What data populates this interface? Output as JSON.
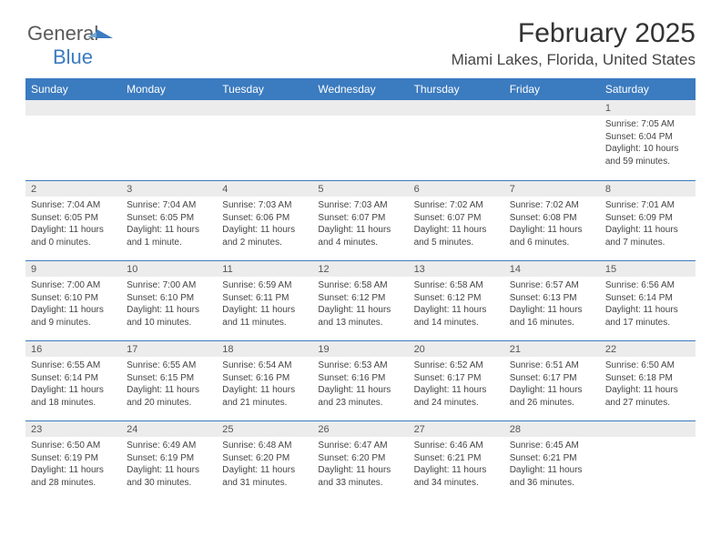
{
  "brand": {
    "part1": "General",
    "part2": "Blue"
  },
  "title": "February 2025",
  "location": "Miami Lakes, Florida, United States",
  "header_bg": "#3b7bbf",
  "weekdays": [
    "Sunday",
    "Monday",
    "Tuesday",
    "Wednesday",
    "Thursday",
    "Friday",
    "Saturday"
  ],
  "weeks": [
    [
      null,
      null,
      null,
      null,
      null,
      null,
      {
        "n": "1",
        "sr": "7:05 AM",
        "ss": "6:04 PM",
        "dl": "10 hours and 59 minutes."
      }
    ],
    [
      {
        "n": "2",
        "sr": "7:04 AM",
        "ss": "6:05 PM",
        "dl": "11 hours and 0 minutes."
      },
      {
        "n": "3",
        "sr": "7:04 AM",
        "ss": "6:05 PM",
        "dl": "11 hours and 1 minute."
      },
      {
        "n": "4",
        "sr": "7:03 AM",
        "ss": "6:06 PM",
        "dl": "11 hours and 2 minutes."
      },
      {
        "n": "5",
        "sr": "7:03 AM",
        "ss": "6:07 PM",
        "dl": "11 hours and 4 minutes."
      },
      {
        "n": "6",
        "sr": "7:02 AM",
        "ss": "6:07 PM",
        "dl": "11 hours and 5 minutes."
      },
      {
        "n": "7",
        "sr": "7:02 AM",
        "ss": "6:08 PM",
        "dl": "11 hours and 6 minutes."
      },
      {
        "n": "8",
        "sr": "7:01 AM",
        "ss": "6:09 PM",
        "dl": "11 hours and 7 minutes."
      }
    ],
    [
      {
        "n": "9",
        "sr": "7:00 AM",
        "ss": "6:10 PM",
        "dl": "11 hours and 9 minutes."
      },
      {
        "n": "10",
        "sr": "7:00 AM",
        "ss": "6:10 PM",
        "dl": "11 hours and 10 minutes."
      },
      {
        "n": "11",
        "sr": "6:59 AM",
        "ss": "6:11 PM",
        "dl": "11 hours and 11 minutes."
      },
      {
        "n": "12",
        "sr": "6:58 AM",
        "ss": "6:12 PM",
        "dl": "11 hours and 13 minutes."
      },
      {
        "n": "13",
        "sr": "6:58 AM",
        "ss": "6:12 PM",
        "dl": "11 hours and 14 minutes."
      },
      {
        "n": "14",
        "sr": "6:57 AM",
        "ss": "6:13 PM",
        "dl": "11 hours and 16 minutes."
      },
      {
        "n": "15",
        "sr": "6:56 AM",
        "ss": "6:14 PM",
        "dl": "11 hours and 17 minutes."
      }
    ],
    [
      {
        "n": "16",
        "sr": "6:55 AM",
        "ss": "6:14 PM",
        "dl": "11 hours and 18 minutes."
      },
      {
        "n": "17",
        "sr": "6:55 AM",
        "ss": "6:15 PM",
        "dl": "11 hours and 20 minutes."
      },
      {
        "n": "18",
        "sr": "6:54 AM",
        "ss": "6:16 PM",
        "dl": "11 hours and 21 minutes."
      },
      {
        "n": "19",
        "sr": "6:53 AM",
        "ss": "6:16 PM",
        "dl": "11 hours and 23 minutes."
      },
      {
        "n": "20",
        "sr": "6:52 AM",
        "ss": "6:17 PM",
        "dl": "11 hours and 24 minutes."
      },
      {
        "n": "21",
        "sr": "6:51 AM",
        "ss": "6:17 PM",
        "dl": "11 hours and 26 minutes."
      },
      {
        "n": "22",
        "sr": "6:50 AM",
        "ss": "6:18 PM",
        "dl": "11 hours and 27 minutes."
      }
    ],
    [
      {
        "n": "23",
        "sr": "6:50 AM",
        "ss": "6:19 PM",
        "dl": "11 hours and 28 minutes."
      },
      {
        "n": "24",
        "sr": "6:49 AM",
        "ss": "6:19 PM",
        "dl": "11 hours and 30 minutes."
      },
      {
        "n": "25",
        "sr": "6:48 AM",
        "ss": "6:20 PM",
        "dl": "11 hours and 31 minutes."
      },
      {
        "n": "26",
        "sr": "6:47 AM",
        "ss": "6:20 PM",
        "dl": "11 hours and 33 minutes."
      },
      {
        "n": "27",
        "sr": "6:46 AM",
        "ss": "6:21 PM",
        "dl": "11 hours and 34 minutes."
      },
      {
        "n": "28",
        "sr": "6:45 AM",
        "ss": "6:21 PM",
        "dl": "11 hours and 36 minutes."
      },
      null
    ]
  ],
  "labels": {
    "sunrise": "Sunrise: ",
    "sunset": "Sunset: ",
    "daylight": "Daylight: "
  }
}
